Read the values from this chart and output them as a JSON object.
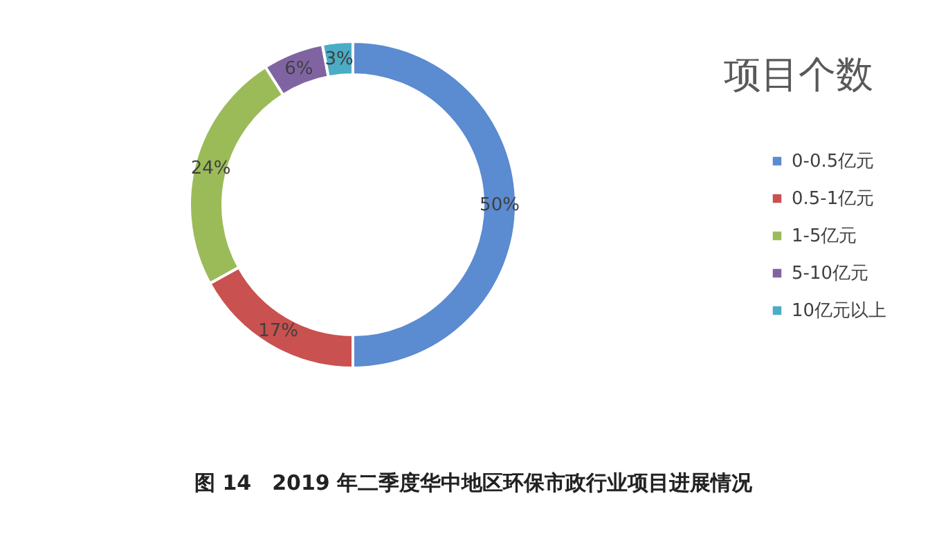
{
  "chart_data": {
    "type": "donut",
    "title": "项目个数",
    "categories": [
      "0-0.5亿元",
      "0.5-1亿元",
      "1-5亿元",
      "5-10亿元",
      "10亿元以上"
    ],
    "values": [
      50,
      17,
      24,
      6,
      3
    ],
    "value_labels": [
      "50%",
      "17%",
      "24%",
      "6%",
      "3%"
    ],
    "colors": [
      "#5b8bd0",
      "#c9514f",
      "#9bbb59",
      "#8064a2",
      "#4bacc6"
    ],
    "legend": "right",
    "annotations": [
      "图 14　2019 年二季度华中地区环保市政行业项目进展情况"
    ]
  }
}
